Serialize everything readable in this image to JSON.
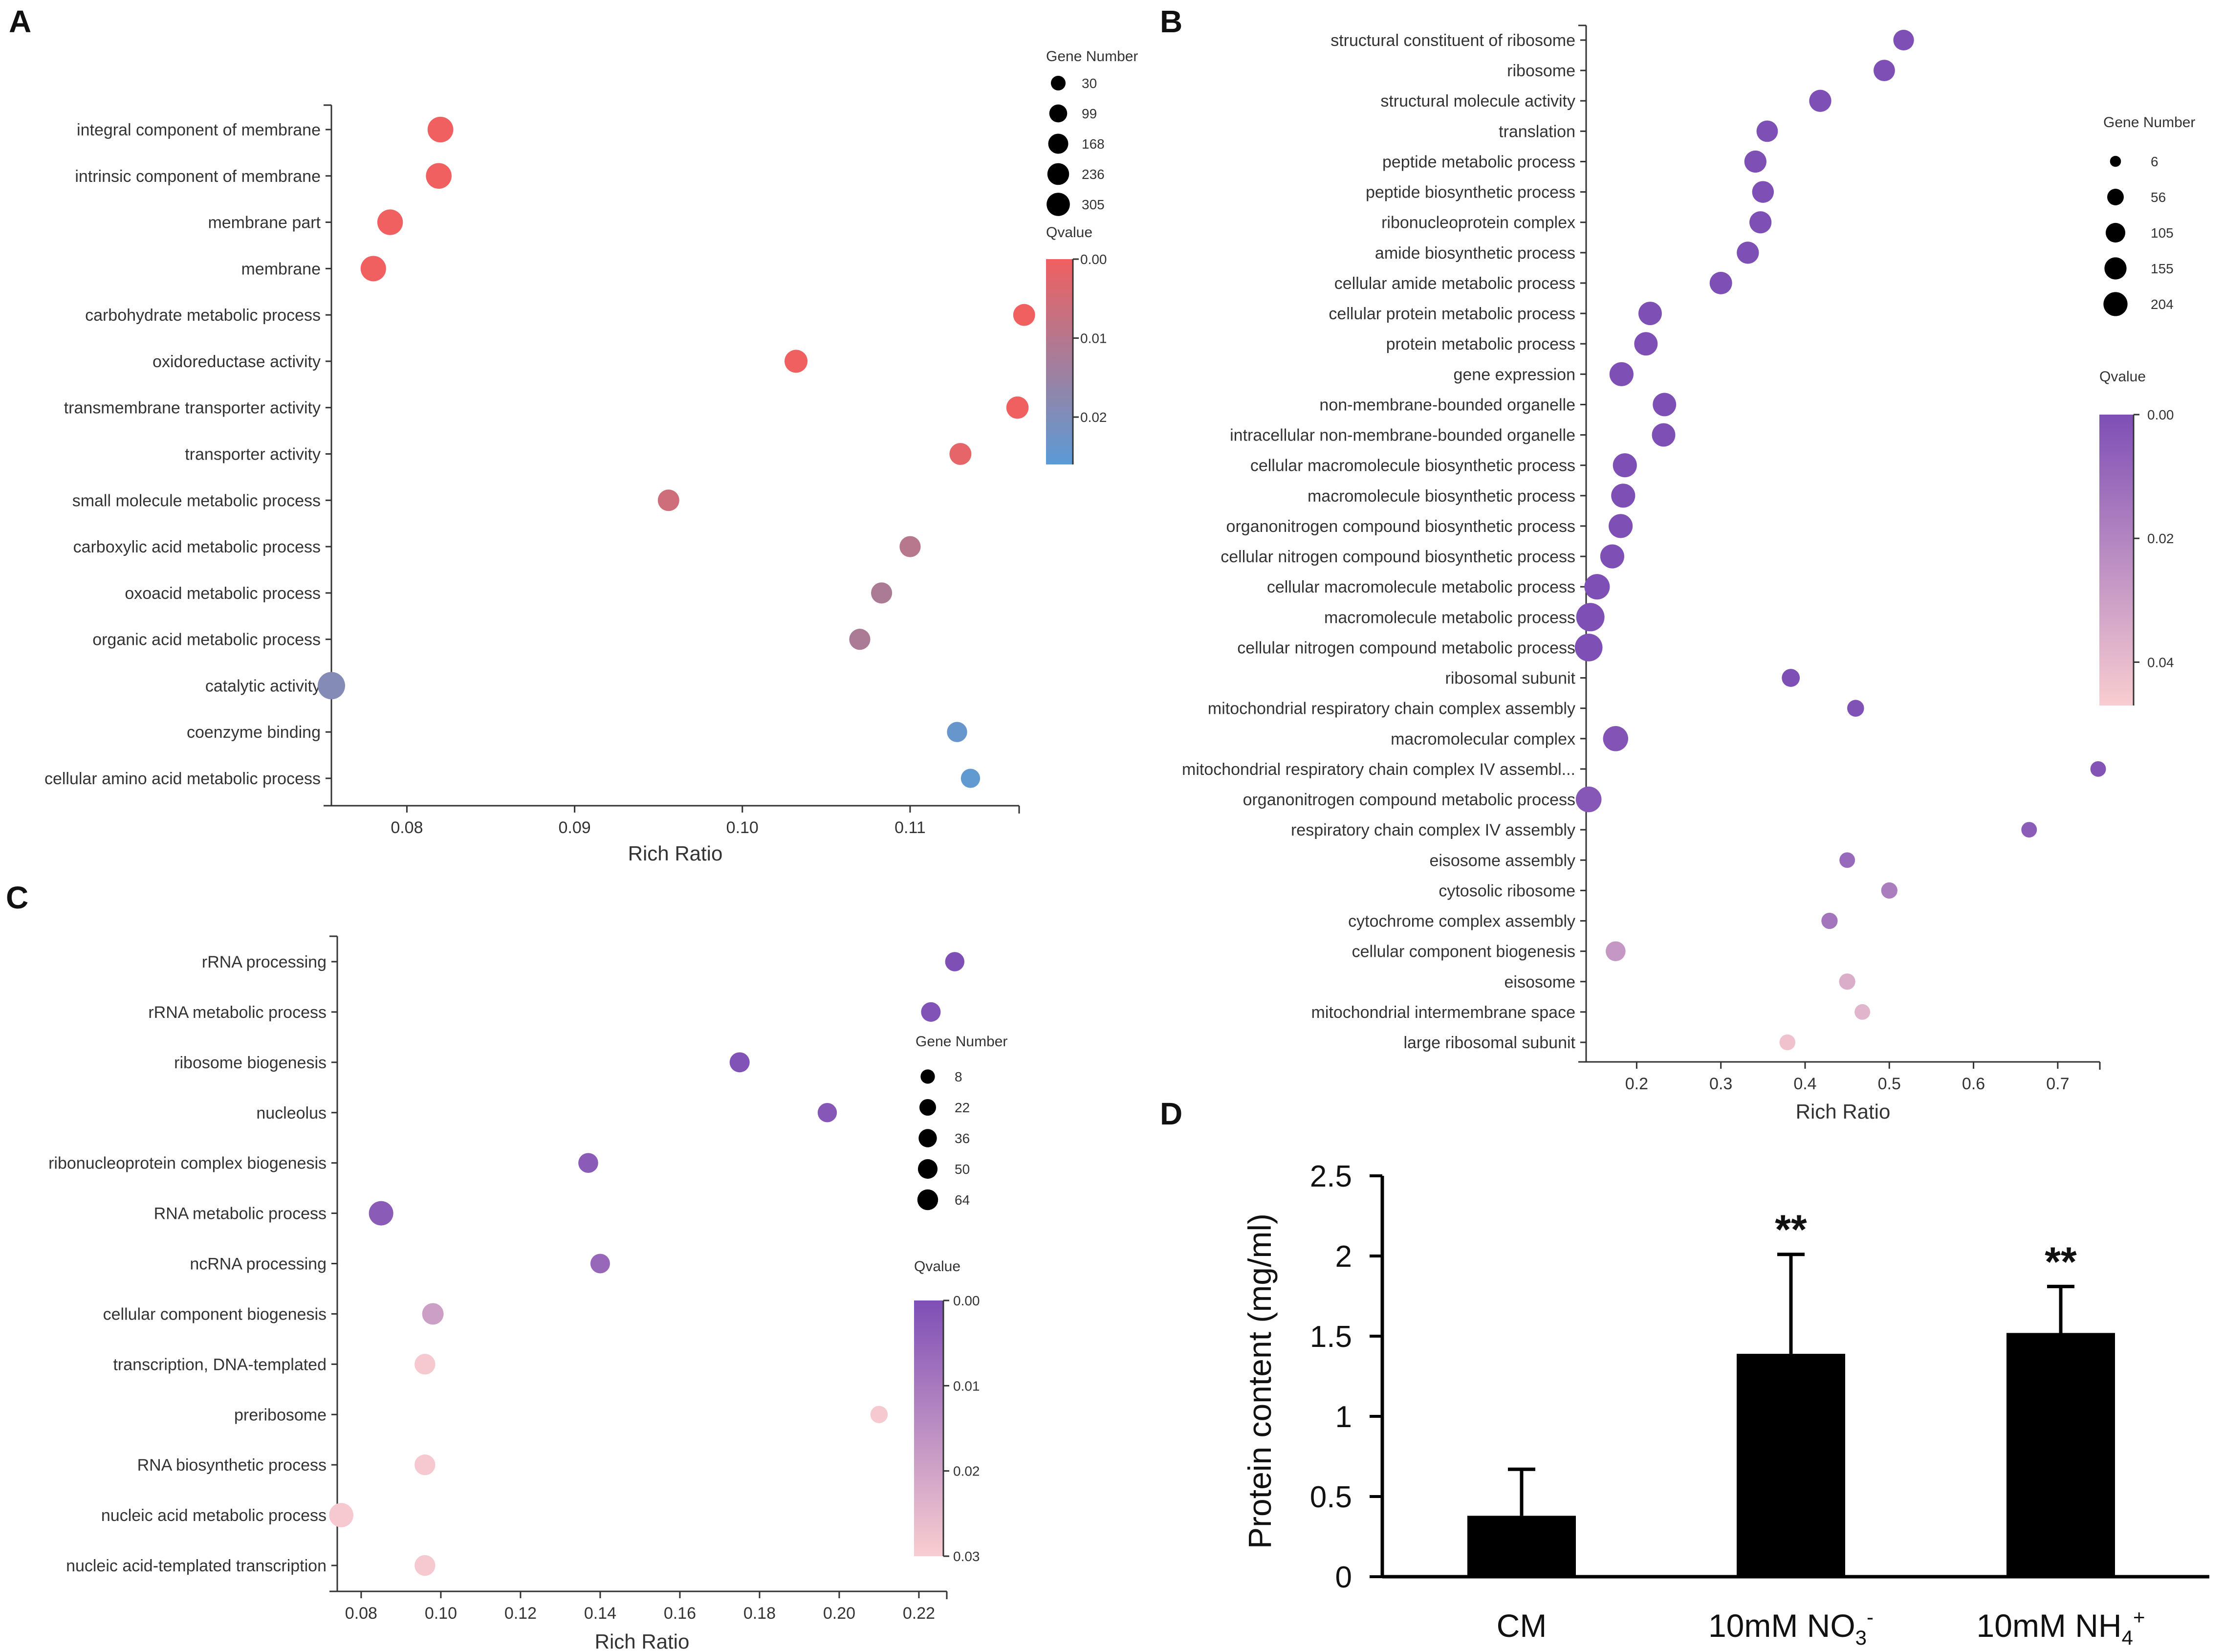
{
  "chart_data": [
    {
      "panel": "A",
      "type": "scatter",
      "xlabel": "Rich Ratio",
      "xlim": [
        0.0755,
        0.1165
      ],
      "xticks": [
        "0.08",
        "0.09",
        "0.10",
        "0.11"
      ],
      "terms": [
        "integral component of membrane",
        "intrinsic component of membrane",
        "membrane part",
        "membrane",
        "carbohydrate metabolic process",
        "oxidoreductase activity",
        "transmembrane transporter activity",
        "transporter activity",
        "small molecule metabolic process",
        "carboxylic acid metabolic process",
        "oxoacid metabolic process",
        "organic acid metabolic process",
        "catalytic activity",
        "coenzyme binding",
        "cellular amino acid metabolic process"
      ],
      "rich_ratio": [
        0.082,
        0.0819,
        0.079,
        0.078,
        0.1168,
        0.1032,
        0.1164,
        0.113,
        0.0956,
        0.11,
        0.1083,
        0.107,
        0.0755,
        0.1128,
        0.1136
      ],
      "gene_number": [
        240,
        240,
        236,
        230,
        120,
        150,
        130,
        120,
        110,
        100,
        100,
        100,
        305,
        80,
        60
      ],
      "qvalue": [
        0.0,
        0.0,
        0.0,
        0.0,
        0.0,
        0.0,
        0.0,
        0.002,
        0.006,
        0.01,
        0.012,
        0.012,
        0.019,
        0.024,
        0.025
      ],
      "size_legend": {
        "title": "Gene Number",
        "labels": [
          "30",
          "99",
          "168",
          "236",
          "305"
        ],
        "values": [
          30,
          99,
          168,
          236,
          305
        ]
      },
      "color_legend": {
        "title": "Qvalue",
        "labels": [
          "0.00",
          "0.01",
          "0.02"
        ],
        "range": [
          0,
          0.026
        ],
        "high_color": "#f06060",
        "low_color": "#5b9bd5"
      }
    },
    {
      "panel": "B",
      "type": "scatter",
      "xlabel": "Rich Ratio",
      "xlim": [
        0.14,
        0.75
      ],
      "xticks": [
        "0.2",
        "0.3",
        "0.4",
        "0.5",
        "0.6",
        "0.7"
      ],
      "terms": [
        "structural constituent of ribosome",
        "ribosome",
        "structural molecule activity",
        "translation",
        "peptide metabolic process",
        "peptide biosynthetic process",
        "ribonucleoprotein complex",
        "amide biosynthetic process",
        "cellular amide metabolic process",
        "cellular protein metabolic process",
        "protein metabolic process",
        "gene expression",
        "non-membrane-bounded organelle",
        "intracellular non-membrane-bounded organelle",
        "cellular macromolecule biosynthetic process",
        "macromolecule biosynthetic process",
        "organonitrogen compound biosynthetic process",
        "cellular nitrogen compound biosynthetic process",
        "cellular macromolecule metabolic process",
        "macromolecule metabolic process",
        "cellular nitrogen compound metabolic process",
        "ribosomal subunit",
        "mitochondrial respiratory chain complex assembly",
        "macromolecular complex",
        "mitochondrial respiratory chain complex IV assembl...",
        "organonitrogen compound metabolic process",
        "respiratory chain complex IV assembly",
        "eisosome assembly",
        "cytosolic ribosome",
        "cytochrome complex assembly",
        "cellular component biogenesis",
        "eisosome",
        "mitochondrial intermembrane space",
        "large ribosomal subunit"
      ],
      "rich_ratio": [
        0.517,
        0.494,
        0.418,
        0.355,
        0.341,
        0.35,
        0.347,
        0.332,
        0.3,
        0.216,
        0.211,
        0.182,
        0.233,
        0.232,
        0.186,
        0.184,
        0.181,
        0.171,
        0.153,
        0.145,
        0.143,
        0.383,
        0.46,
        0.175,
        0.748,
        0.143,
        0.666,
        0.45,
        0.5,
        0.429,
        0.175,
        0.45,
        0.468,
        0.379
      ],
      "gene_number": [
        70,
        80,
        90,
        80,
        90,
        85,
        90,
        90,
        95,
        110,
        110,
        120,
        110,
        110,
        120,
        120,
        120,
        120,
        145,
        204,
        190,
        40,
        30,
        140,
        20,
        150,
        20,
        20,
        25,
        25,
        60,
        25,
        20,
        22
      ],
      "qvalue": [
        0.0,
        0.0,
        0.0,
        0.0,
        0.0,
        0.0,
        0.0,
        0.0,
        0.0,
        0.0,
        0.0,
        0.0,
        0.0,
        0.0,
        0.0,
        0.0,
        0.0,
        0.0,
        0.0,
        0.0,
        0.0,
        0.0,
        0.001,
        0.002,
        0.002,
        0.003,
        0.005,
        0.01,
        0.017,
        0.014,
        0.027,
        0.035,
        0.038,
        0.043
      ],
      "size_legend": {
        "title": "Gene Number",
        "labels": [
          "6",
          "56",
          "105",
          "155",
          "204"
        ],
        "values": [
          6,
          56,
          105,
          155,
          204
        ]
      },
      "color_legend": {
        "title": "Qvalue",
        "labels": [
          "0.00",
          "0.02",
          "0.04"
        ],
        "range": [
          0,
          0.047
        ],
        "high_color": "#7e4fb5",
        "low_color": "#f9cdd0"
      }
    },
    {
      "panel": "C",
      "type": "scatter",
      "xlabel": "Rich Ratio",
      "xlim": [
        0.074,
        0.227
      ],
      "xticks": [
        "0.08",
        "0.10",
        "0.12",
        "0.14",
        "0.16",
        "0.18",
        "0.20",
        "0.22"
      ],
      "terms": [
        "rRNA processing",
        "rRNA metabolic process",
        "ribosome biogenesis",
        "nucleolus",
        "ribonucleoprotein complex biogenesis",
        "RNA metabolic process",
        "ncRNA processing",
        "cellular component biogenesis",
        "transcription, DNA-templated",
        "preribosome",
        "RNA biosynthetic process",
        "nucleic acid metabolic process",
        "nucleic acid-templated transcription"
      ],
      "rich_ratio": [
        0.229,
        0.223,
        0.175,
        0.197,
        0.137,
        0.085,
        0.14,
        0.098,
        0.096,
        0.21,
        0.096,
        0.075,
        0.096
      ],
      "gene_number": [
        20,
        22,
        25,
        20,
        24,
        64,
        22,
        36,
        30,
        10,
        30,
        62,
        30
      ],
      "qvalue": [
        0.0,
        0.001,
        0.001,
        0.002,
        0.003,
        0.003,
        0.006,
        0.019,
        0.029,
        0.029,
        0.029,
        0.029,
        0.029
      ],
      "size_legend": {
        "title": "Gene Number",
        "labels": [
          "8",
          "22",
          "36",
          "50",
          "64"
        ],
        "values": [
          8,
          22,
          36,
          50,
          64
        ]
      },
      "color_legend": {
        "title": "Qvalue",
        "labels": [
          "0.00",
          "0.01",
          "0.02",
          "0.03"
        ],
        "range": [
          0,
          0.03
        ],
        "high_color": "#7e4fb5",
        "low_color": "#f9cdd0"
      }
    },
    {
      "panel": "D",
      "type": "bar",
      "ylabel": "Protein content (mg/ml)",
      "ylim": [
        0,
        2.5
      ],
      "yticks": [
        "0",
        "0.5",
        "1",
        "1.5",
        "2",
        "2.5"
      ],
      "categories": [
        {
          "base": "CM",
          "sub": "",
          "sup": ""
        },
        {
          "base": "10mM NO",
          "sub": "3",
          "sup": "-"
        },
        {
          "base": "10mM NH",
          "sub": "4",
          "sup": "+"
        }
      ],
      "values": [
        0.38,
        1.39,
        1.52
      ],
      "errors": [
        0.29,
        0.62,
        0.29
      ],
      "significance": [
        "",
        "**",
        "**"
      ],
      "bar_color": "#000000"
    }
  ]
}
